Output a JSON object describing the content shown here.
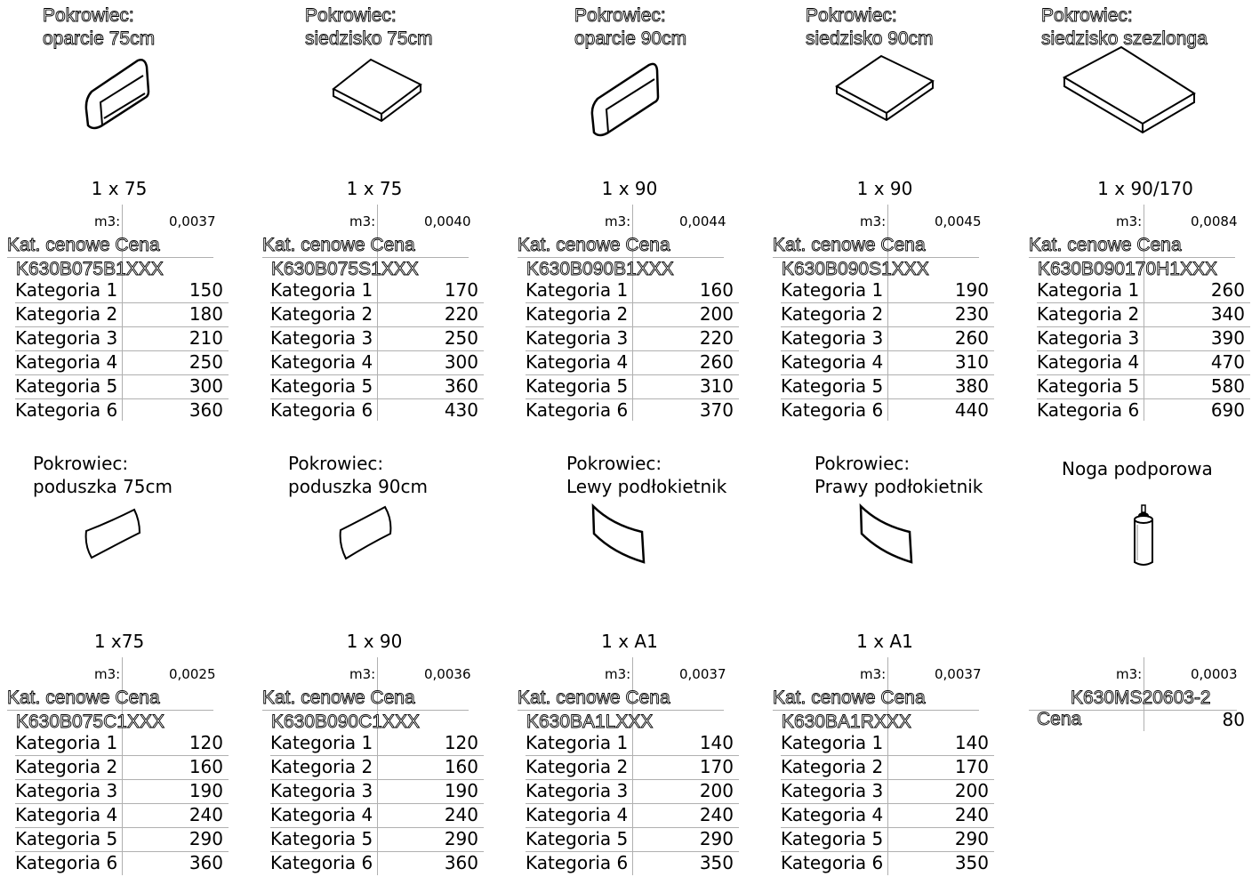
{
  "columns_header": {
    "cat_label": "Kat. cenowe",
    "price_label": "Cena",
    "m3_label": "m3:"
  },
  "category_labels": [
    "Kategoria 1",
    "Kategoria 2",
    "Kategoria 3",
    "Kategoria 4",
    "Kategoria 5",
    "Kategoria 6"
  ],
  "products": [
    {
      "title": "Pokrowiec:\noparcie 75cm",
      "size": "1 x 75",
      "m3": "0,0037",
      "code": "K630B075B1XXX",
      "prices": [
        "150",
        "180",
        "210",
        "250",
        "300",
        "360"
      ],
      "icon": "backrest-icon"
    },
    {
      "title": "Pokrowiec:\nsiedzisko 75cm",
      "size": "1 x 75",
      "m3": "0,0040",
      "code": "K630B075S1XXX",
      "prices": [
        "170",
        "220",
        "250",
        "300",
        "360",
        "430"
      ],
      "icon": "seat-cushion-icon"
    },
    {
      "title": "Pokrowiec:\noparcie 90cm",
      "size": "1 x 90",
      "m3": "0,0044",
      "code": "K630B090B1XXX",
      "prices": [
        "160",
        "200",
        "220",
        "260",
        "310",
        "370"
      ],
      "icon": "backrest-icon"
    },
    {
      "title": "Pokrowiec:\nsiedzisko 90cm",
      "size": "1 x 90",
      "m3": "0,0045",
      "code": "K630B090S1XXX",
      "prices": [
        "190",
        "230",
        "260",
        "310",
        "380",
        "440"
      ],
      "icon": "seat-cushion-icon"
    },
    {
      "title": "Pokrowiec:\nsiedzisko szezlonga",
      "size": "1 x 90/170",
      "m3": "0,0084",
      "code": "K630B090170H1XXX",
      "prices": [
        "260",
        "340",
        "390",
        "470",
        "580",
        "690"
      ],
      "icon": "chaise-seat-icon"
    },
    {
      "title": "Pokrowiec:\npoduszka 75cm",
      "size": "1 x75",
      "m3": "0,0025",
      "code": "K630B075C1XXX",
      "prices": [
        "120",
        "160",
        "190",
        "240",
        "290",
        "360"
      ],
      "icon": "pillow-icon"
    },
    {
      "title": "Pokrowiec:\npoduszka 90cm",
      "size": "1 x 90",
      "m3": "0,0036",
      "code": "K630B090C1XXX",
      "prices": [
        "120",
        "160",
        "190",
        "240",
        "290",
        "360"
      ],
      "icon": "pillow-icon"
    },
    {
      "title": "Pokrowiec:\nLewy podłokietnik",
      "size": "1 x A1",
      "m3": "0,0037",
      "code": "K630BA1LXXX",
      "prices": [
        "140",
        "170",
        "200",
        "240",
        "290",
        "350"
      ],
      "icon": "armrest-icon"
    },
    {
      "title": "Pokrowiec:\nPrawy podłokietnik",
      "size": "1 x A1",
      "m3": "0,0037",
      "code": "K630BA1RXXX",
      "prices": [
        "140",
        "170",
        "200",
        "240",
        "290",
        "350"
      ],
      "icon": "armrest-icon"
    }
  ],
  "leg": {
    "title": "Noga podporowa",
    "m3": "0,0003",
    "code": "K630MS20603-2",
    "price_label": "Cena",
    "price": "80",
    "icon": "support-leg-icon"
  }
}
